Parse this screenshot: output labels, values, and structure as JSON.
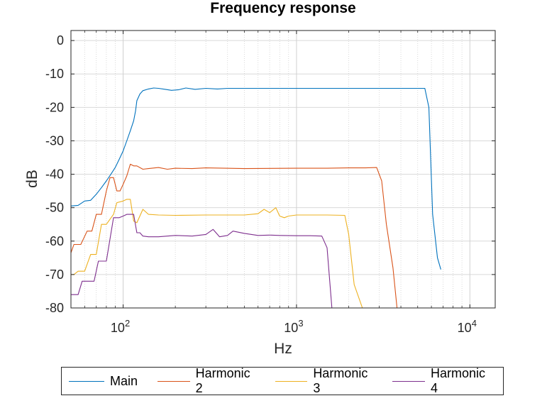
{
  "chart_data": {
    "type": "line",
    "title": "Frequency response",
    "xlabel": "Hz",
    "ylabel": "dB",
    "xscale": "log",
    "xlim": [
      50,
      14000
    ],
    "ylim": [
      -80,
      3
    ],
    "yticks": [
      0,
      -10,
      -20,
      -30,
      -40,
      -50,
      -60,
      -70,
      -80
    ],
    "xticks": [
      {
        "value": 100,
        "base": "10",
        "exp": "2"
      },
      {
        "value": 1000,
        "base": "10",
        "exp": "3"
      },
      {
        "value": 10000,
        "base": "10",
        "exp": "4"
      }
    ],
    "grid": true,
    "legend_position": "bottom-outside",
    "series": [
      {
        "name": "Main",
        "color": "#0072bd",
        "points": [
          [
            50,
            -49.5
          ],
          [
            55,
            -49.3
          ],
          [
            60,
            -48
          ],
          [
            65,
            -47.8
          ],
          [
            70,
            -46
          ],
          [
            75,
            -44
          ],
          [
            80,
            -42
          ],
          [
            85,
            -40
          ],
          [
            90,
            -38
          ],
          [
            95,
            -35.5
          ],
          [
            100,
            -33
          ],
          [
            105,
            -30
          ],
          [
            110,
            -27
          ],
          [
            115,
            -24
          ],
          [
            118,
            -21
          ],
          [
            120,
            -18
          ],
          [
            125,
            -16
          ],
          [
            130,
            -15
          ],
          [
            140,
            -14.5
          ],
          [
            150,
            -14.2
          ],
          [
            160,
            -14.3
          ],
          [
            175,
            -14.6
          ],
          [
            190,
            -14.9
          ],
          [
            210,
            -14.7
          ],
          [
            230,
            -14.2
          ],
          [
            260,
            -14.6
          ],
          [
            300,
            -14.3
          ],
          [
            350,
            -14.5
          ],
          [
            400,
            -14.3
          ],
          [
            500,
            -14.3
          ],
          [
            700,
            -14.3
          ],
          [
            1000,
            -14.3
          ],
          [
            2000,
            -14.3
          ],
          [
            3000,
            -14.3
          ],
          [
            4000,
            -14.3
          ],
          [
            5000,
            -14.3
          ],
          [
            5500,
            -14.3
          ],
          [
            5800,
            -20
          ],
          [
            6100,
            -52
          ],
          [
            6500,
            -65
          ],
          [
            6800,
            -68.5
          ]
        ]
      },
      {
        "name": "Harmonic 2",
        "color": "#d95319",
        "points": [
          [
            50,
            -63.5
          ],
          [
            52,
            -61
          ],
          [
            57,
            -61
          ],
          [
            62,
            -57
          ],
          [
            66,
            -57
          ],
          [
            70,
            -52
          ],
          [
            75,
            -52
          ],
          [
            80,
            -45
          ],
          [
            84,
            -41
          ],
          [
            88,
            -41
          ],
          [
            92,
            -45
          ],
          [
            96,
            -45
          ],
          [
            100,
            -43
          ],
          [
            105,
            -40.5
          ],
          [
            110,
            -37
          ],
          [
            115,
            -37.5
          ],
          [
            120,
            -37.5
          ],
          [
            130,
            -38.5
          ],
          [
            140,
            -38.3
          ],
          [
            160,
            -38
          ],
          [
            180,
            -38.5
          ],
          [
            200,
            -38.2
          ],
          [
            250,
            -38.3
          ],
          [
            300,
            -38.1
          ],
          [
            500,
            -38.3
          ],
          [
            1000,
            -38.2
          ],
          [
            1500,
            -38.2
          ],
          [
            2000,
            -38.1
          ],
          [
            2500,
            -38.1
          ],
          [
            2900,
            -38
          ],
          [
            3100,
            -42
          ],
          [
            3300,
            -55
          ],
          [
            3600,
            -68
          ],
          [
            3800,
            -80
          ]
        ]
      },
      {
        "name": "Harmonic 3",
        "color": "#edb120",
        "points": [
          [
            50,
            -70
          ],
          [
            52,
            -70
          ],
          [
            55,
            -69
          ],
          [
            60,
            -69
          ],
          [
            65,
            -64
          ],
          [
            70,
            -64
          ],
          [
            75,
            -55
          ],
          [
            80,
            -55
          ],
          [
            88,
            -52
          ],
          [
            92,
            -48.5
          ],
          [
            100,
            -48
          ],
          [
            105,
            -47.5
          ],
          [
            110,
            -47.5
          ],
          [
            115,
            -54
          ],
          [
            120,
            -54.5
          ],
          [
            130,
            -50.5
          ],
          [
            140,
            -52
          ],
          [
            160,
            -52.2
          ],
          [
            200,
            -52.3
          ],
          [
            300,
            -52.2
          ],
          [
            500,
            -52.2
          ],
          [
            600,
            -51.8
          ],
          [
            650,
            -50.5
          ],
          [
            700,
            -51.5
          ],
          [
            760,
            -50
          ],
          [
            800,
            -52.5
          ],
          [
            850,
            -53
          ],
          [
            900,
            -52.5
          ],
          [
            1000,
            -52.2
          ],
          [
            1500,
            -52.2
          ],
          [
            1900,
            -52.3
          ],
          [
            2000,
            -58
          ],
          [
            2150,
            -73
          ],
          [
            2400,
            -80
          ]
        ]
      },
      {
        "name": "Harmonic 4",
        "color": "#7e2f8e",
        "points": [
          [
            50,
            -76
          ],
          [
            55,
            -76
          ],
          [
            58,
            -72
          ],
          [
            63,
            -72
          ],
          [
            68,
            -72
          ],
          [
            72,
            -66
          ],
          [
            80,
            -66
          ],
          [
            88,
            -53
          ],
          [
            95,
            -53
          ],
          [
            100,
            -52.5
          ],
          [
            105,
            -52
          ],
          [
            110,
            -52
          ],
          [
            115,
            -52
          ],
          [
            120,
            -57.5
          ],
          [
            125,
            -57.5
          ],
          [
            130,
            -58.5
          ],
          [
            140,
            -58.7
          ],
          [
            160,
            -58.7
          ],
          [
            200,
            -58.3
          ],
          [
            250,
            -58.5
          ],
          [
            300,
            -58
          ],
          [
            330,
            -56.5
          ],
          [
            360,
            -58.7
          ],
          [
            400,
            -58.3
          ],
          [
            430,
            -57
          ],
          [
            500,
            -57.7
          ],
          [
            600,
            -58.3
          ],
          [
            700,
            -58.2
          ],
          [
            800,
            -58.3
          ],
          [
            1000,
            -58.4
          ],
          [
            1200,
            -58.4
          ],
          [
            1400,
            -58.5
          ],
          [
            1500,
            -62
          ],
          [
            1600,
            -80
          ]
        ]
      }
    ]
  }
}
